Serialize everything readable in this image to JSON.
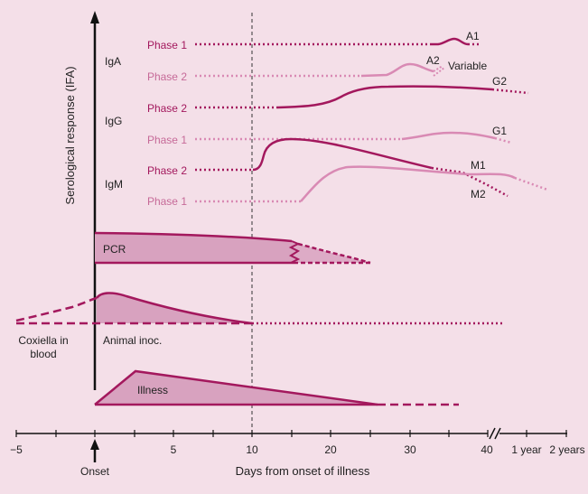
{
  "colors": {
    "background": "#f4dfe8",
    "dark_curve": "#a3185d",
    "light_curve": "#d98ab4",
    "fill": "#d8a2bf",
    "axis": "#111111"
  },
  "y_axis_label": "Serological response (IFA)",
  "x_axis_label": "Days from onset of illness",
  "onset_label": "Onset",
  "ticks": [
    "−5",
    "5",
    "10",
    "20",
    "30",
    "40",
    "1 year",
    "2 years"
  ],
  "classes": {
    "iga": "IgA",
    "igg": "IgG",
    "igm": "IgM"
  },
  "phases": [
    {
      "label": "Phase 1",
      "shade": "dark"
    },
    {
      "label": "Phase 2",
      "shade": "light"
    },
    {
      "label": "Phase 2",
      "shade": "dark"
    },
    {
      "label": "Phase 1",
      "shade": "light"
    },
    {
      "label": "Phase 2",
      "shade": "dark"
    },
    {
      "label": "Phase 1",
      "shade": "light"
    }
  ],
  "curve_labels": {
    "a1": "A1",
    "a2": "A2",
    "variable": "Variable",
    "g2": "G2",
    "g1": "G1",
    "m1": "M1",
    "m2": "M2"
  },
  "regions": {
    "pcr": "PCR",
    "coxiella": "Coxiella in blood",
    "coxiella_line1": "Coxiella in",
    "coxiella_line2": "blood",
    "animal": "Animal inoc.",
    "illness": "Illness"
  }
}
